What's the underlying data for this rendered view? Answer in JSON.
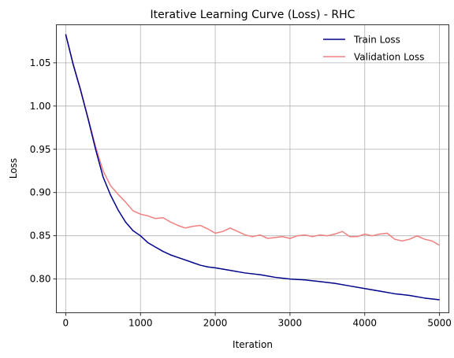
{
  "chart_data": {
    "type": "line",
    "title": "Iterative Learning Curve (Loss) - RHC",
    "xlabel": "Iteration",
    "ylabel": "Loss",
    "xlim": [
      -125,
      5125
    ],
    "ylim": [
      0.761,
      1.094
    ],
    "xticks": [
      0,
      1000,
      2000,
      3000,
      4000,
      5000
    ],
    "xtick_labels": [
      "0",
      "1000",
      "2000",
      "3000",
      "4000",
      "5000"
    ],
    "yticks": [
      0.8,
      0.85,
      0.9,
      0.95,
      1.0,
      1.05
    ],
    "ytick_labels": [
      "0.80",
      "0.85",
      "0.90",
      "0.95",
      "1.00",
      "1.05"
    ],
    "grid": true,
    "legend_position": "top-right",
    "series": [
      {
        "name": "Train Loss",
        "color": "#00008b",
        "x": [
          0,
          100,
          200,
          300,
          400,
          500,
          600,
          700,
          800,
          900,
          1000,
          1100,
          1200,
          1300,
          1400,
          1500,
          1600,
          1700,
          1800,
          1900,
          2000,
          2200,
          2400,
          2600,
          2800,
          3000,
          3200,
          3400,
          3600,
          3800,
          4000,
          4200,
          4400,
          4600,
          4800,
          5000
        ],
        "values": [
          1.083,
          1.048,
          1.018,
          0.985,
          0.95,
          0.918,
          0.897,
          0.88,
          0.866,
          0.856,
          0.85,
          0.842,
          0.837,
          0.832,
          0.828,
          0.825,
          0.822,
          0.819,
          0.816,
          0.814,
          0.813,
          0.81,
          0.807,
          0.805,
          0.802,
          0.8,
          0.799,
          0.797,
          0.795,
          0.792,
          0.789,
          0.786,
          0.783,
          0.781,
          0.778,
          0.776
        ]
      },
      {
        "name": "Validation Loss",
        "color": "#f08080",
        "x": [
          0,
          100,
          200,
          300,
          400,
          500,
          600,
          700,
          800,
          900,
          1000,
          1100,
          1200,
          1300,
          1400,
          1500,
          1600,
          1700,
          1800,
          1900,
          2000,
          2100,
          2200,
          2300,
          2400,
          2500,
          2600,
          2700,
          2800,
          2900,
          3000,
          3100,
          3200,
          3300,
          3400,
          3500,
          3600,
          3700,
          3800,
          3900,
          4000,
          4100,
          4200,
          4300,
          4400,
          4500,
          4600,
          4700,
          4800,
          4900,
          5000
        ],
        "values": [
          1.083,
          1.049,
          1.019,
          0.986,
          0.953,
          0.925,
          0.908,
          0.898,
          0.889,
          0.879,
          0.875,
          0.873,
          0.87,
          0.871,
          0.866,
          0.862,
          0.859,
          0.861,
          0.862,
          0.858,
          0.853,
          0.855,
          0.859,
          0.855,
          0.851,
          0.849,
          0.851,
          0.847,
          0.848,
          0.849,
          0.847,
          0.85,
          0.851,
          0.849,
          0.851,
          0.85,
          0.852,
          0.855,
          0.849,
          0.849,
          0.852,
          0.85,
          0.852,
          0.853,
          0.846,
          0.844,
          0.846,
          0.85,
          0.846,
          0.844,
          0.839
        ]
      }
    ]
  }
}
